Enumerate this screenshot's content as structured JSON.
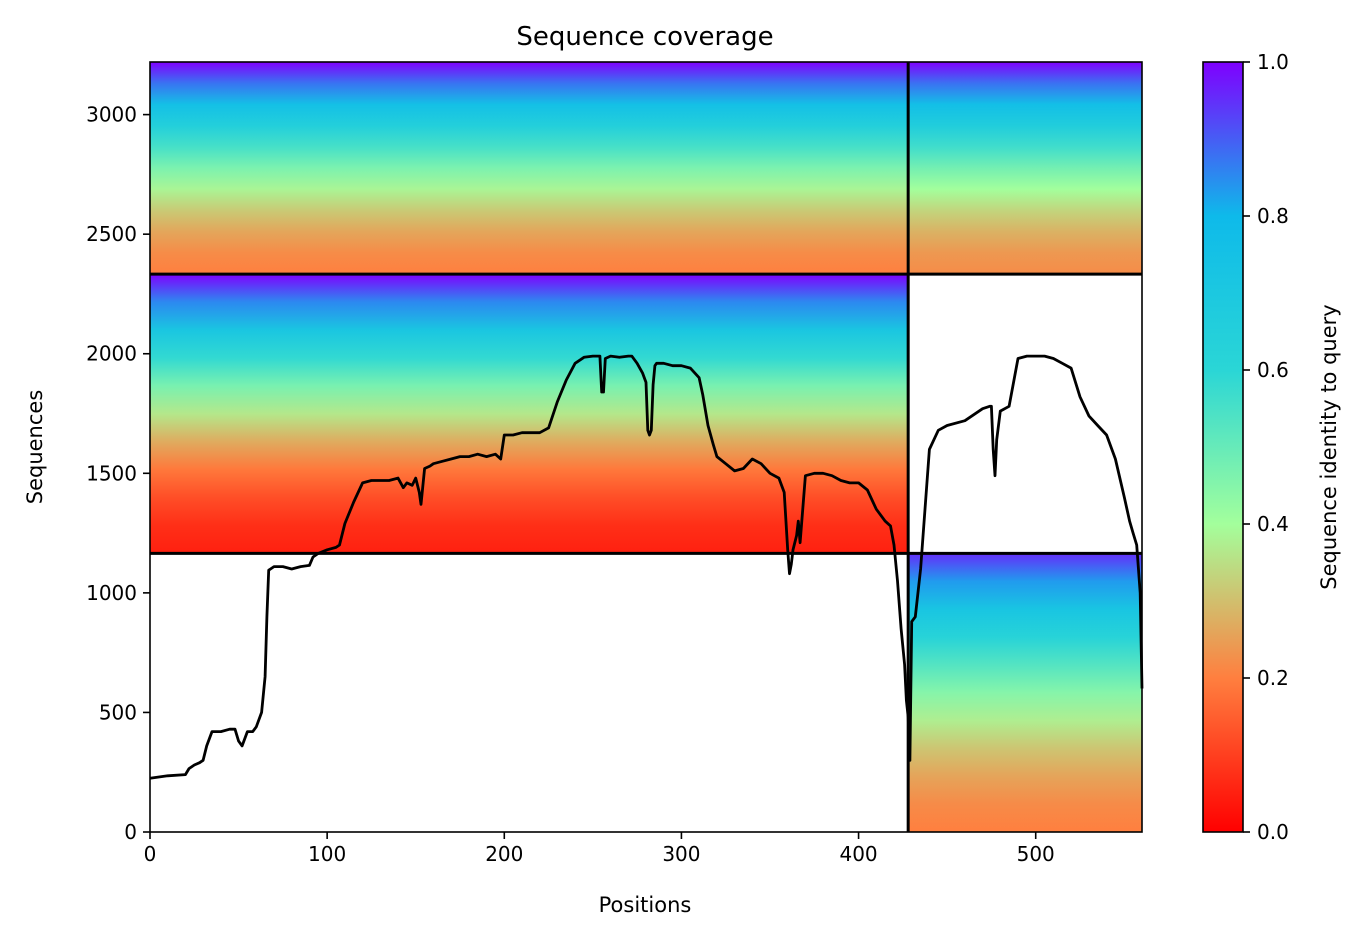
{
  "chart_data": {
    "type": "heatmap",
    "title": "Sequence coverage",
    "xlabel": "Positions",
    "ylabel": "Sequences",
    "xlim": [
      0,
      560
    ],
    "ylim": [
      0,
      3220
    ],
    "xticks": [
      "0",
      "100",
      "200",
      "300",
      "400",
      "500"
    ],
    "yticks": [
      "0",
      "500",
      "1000",
      "1500",
      "2000",
      "2500",
      "3000"
    ],
    "grid": false,
    "colorbar": {
      "label": "Sequence identity to query",
      "range": [
        0,
        1
      ],
      "ticks": [
        "0.0",
        "0.2",
        "0.4",
        "0.6",
        "0.8",
        "1.0"
      ],
      "colormap": "rainbow",
      "colors": [
        "#ff0000",
        "#ff7f3f",
        "#a3ff9c",
        "#2ad6d6",
        "#0ebaea",
        "#7f00ff"
      ]
    },
    "chain_boundaries": {
      "x": [
        428
      ],
      "y": [
        1165,
        2333
      ]
    },
    "blocks": [
      {
        "name": "block-a",
        "x": [
          0,
          428
        ],
        "y": [
          2333,
          3220
        ],
        "identity_bottom": 0.2,
        "identity_top": 1.0
      },
      {
        "name": "block-b",
        "x": [
          428,
          560
        ],
        "y": [
          2333,
          3220
        ],
        "identity_bottom": 0.22,
        "identity_top": 1.0
      },
      {
        "name": "block-c",
        "x": [
          0,
          428
        ],
        "y": [
          1165,
          2333
        ],
        "identity_bottom": 0.05,
        "identity_top": 1.0
      },
      {
        "name": "block-d",
        "x": [
          428,
          560
        ],
        "y": [
          0,
          1165
        ],
        "identity_bottom": 0.2,
        "identity_top": 0.95
      }
    ],
    "coverage_line": {
      "color": "#000000",
      "x": [
        0,
        10,
        20,
        22,
        25,
        28,
        30,
        32,
        35,
        40,
        45,
        48,
        50,
        52,
        55,
        58,
        60,
        63,
        65,
        66,
        67,
        68,
        70,
        75,
        80,
        85,
        90,
        92,
        95,
        100,
        105,
        107,
        110,
        115,
        120,
        125,
        130,
        135,
        140,
        143,
        145,
        148,
        150,
        152,
        153,
        155,
        158,
        160,
        165,
        170,
        175,
        180,
        185,
        190,
        195,
        198,
        200,
        205,
        210,
        215,
        220,
        225,
        230,
        235,
        240,
        243,
        245,
        250,
        254,
        255,
        256,
        257,
        260,
        265,
        270,
        272,
        275,
        278,
        280,
        281,
        282,
        283,
        284,
        285,
        286,
        290,
        295,
        300,
        305,
        310,
        312,
        315,
        318,
        320,
        325,
        330,
        335,
        340,
        345,
        350,
        355,
        358,
        360,
        361,
        362,
        363,
        365,
        366,
        367,
        370,
        375,
        380,
        385,
        390,
        395,
        400,
        405,
        410,
        415,
        418,
        420,
        422,
        424,
        426,
        427,
        428,
        429,
        430,
        432,
        435,
        440,
        445,
        450,
        460,
        470,
        474,
        475,
        476,
        477,
        478,
        480,
        485,
        490,
        495,
        500,
        505,
        510,
        515,
        520,
        525,
        530,
        535,
        540,
        545,
        550,
        553,
        555,
        557,
        559,
        560
      ],
      "y": [
        225,
        235,
        240,
        265,
        280,
        290,
        300,
        360,
        420,
        420,
        430,
        430,
        380,
        360,
        420,
        420,
        440,
        500,
        650,
        900,
        1095,
        1100,
        1110,
        1110,
        1100,
        1110,
        1115,
        1150,
        1165,
        1180,
        1190,
        1200,
        1290,
        1380,
        1460,
        1470,
        1470,
        1470,
        1480,
        1440,
        1460,
        1450,
        1480,
        1420,
        1370,
        1520,
        1530,
        1540,
        1550,
        1560,
        1570,
        1570,
        1580,
        1570,
        1580,
        1560,
        1660,
        1660,
        1670,
        1670,
        1670,
        1690,
        1800,
        1890,
        1960,
        1975,
        1985,
        1990,
        1990,
        1840,
        1840,
        1980,
        1990,
        1985,
        1990,
        1990,
        1960,
        1920,
        1880,
        1680,
        1660,
        1680,
        1870,
        1950,
        1960,
        1960,
        1950,
        1950,
        1940,
        1900,
        1830,
        1700,
        1620,
        1570,
        1540,
        1510,
        1520,
        1560,
        1540,
        1500,
        1480,
        1420,
        1180,
        1080,
        1120,
        1180,
        1240,
        1300,
        1210,
        1490,
        1500,
        1500,
        1490,
        1470,
        1460,
        1460,
        1430,
        1350,
        1300,
        1280,
        1200,
        1050,
        850,
        700,
        550,
        480,
        300,
        880,
        900,
        1100,
        1600,
        1680,
        1700,
        1720,
        1770,
        1780,
        1780,
        1600,
        1490,
        1640,
        1760,
        1780,
        1980,
        1990,
        1990,
        1990,
        1980,
        1960,
        1940,
        1820,
        1740,
        1700,
        1660,
        1560,
        1400,
        1300,
        1250,
        1200,
        1000,
        600
      ]
    }
  }
}
